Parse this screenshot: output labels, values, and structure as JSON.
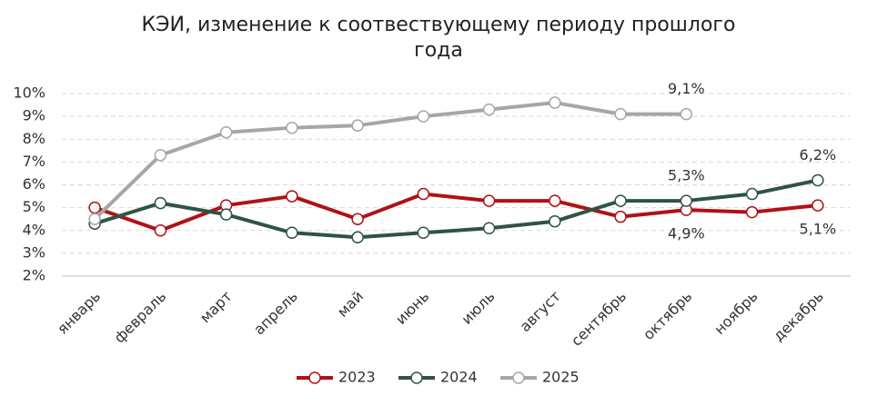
{
  "chart_data": {
    "type": "line",
    "title": "КЭИ, изменение к соотвествующему периоду прошлого года",
    "categories": [
      "январь",
      "февраль",
      "март",
      "апрель",
      "май",
      "июнь",
      "июль",
      "август",
      "сентябрь",
      "октябрь",
      "ноябрь",
      "декабрь"
    ],
    "series": [
      {
        "name": "2023",
        "color": "#b01116",
        "values": [
          5.0,
          4.0,
          5.1,
          5.5,
          4.5,
          5.6,
          5.3,
          5.3,
          4.6,
          4.9,
          4.8,
          5.1
        ],
        "value_labels": [
          null,
          null,
          null,
          null,
          null,
          null,
          null,
          null,
          null,
          "4,9%",
          null,
          "5,1%"
        ]
      },
      {
        "name": "2024",
        "color": "#2e5443",
        "values": [
          4.3,
          5.2,
          4.7,
          3.9,
          3.7,
          3.9,
          4.1,
          4.4,
          5.3,
          5.3,
          5.6,
          6.2
        ],
        "value_labels": [
          null,
          null,
          null,
          null,
          null,
          null,
          null,
          null,
          null,
          "5,3%",
          null,
          "6,2%"
        ]
      },
      {
        "name": "2025",
        "color": "#a6a6a6",
        "values": [
          4.5,
          7.3,
          8.3,
          8.5,
          8.6,
          9.0,
          9.3,
          9.6,
          9.1,
          9.1,
          null,
          null
        ],
        "value_labels": [
          null,
          null,
          null,
          null,
          null,
          null,
          null,
          null,
          null,
          "9,1%",
          null,
          null
        ]
      }
    ],
    "ylim": [
      2,
      10
    ],
    "yticks": [
      {
        "value": 2,
        "label": "2%"
      },
      {
        "value": 3,
        "label": "3%"
      },
      {
        "value": 4,
        "label": "4%"
      },
      {
        "value": 5,
        "label": "5%"
      },
      {
        "value": 6,
        "label": "6%"
      },
      {
        "value": 7,
        "label": "7%"
      },
      {
        "value": 8,
        "label": "8%"
      },
      {
        "value": 9,
        "label": "9%"
      },
      {
        "value": 10,
        "label": "10%"
      }
    ],
    "grid": true,
    "legend": "bottom"
  }
}
